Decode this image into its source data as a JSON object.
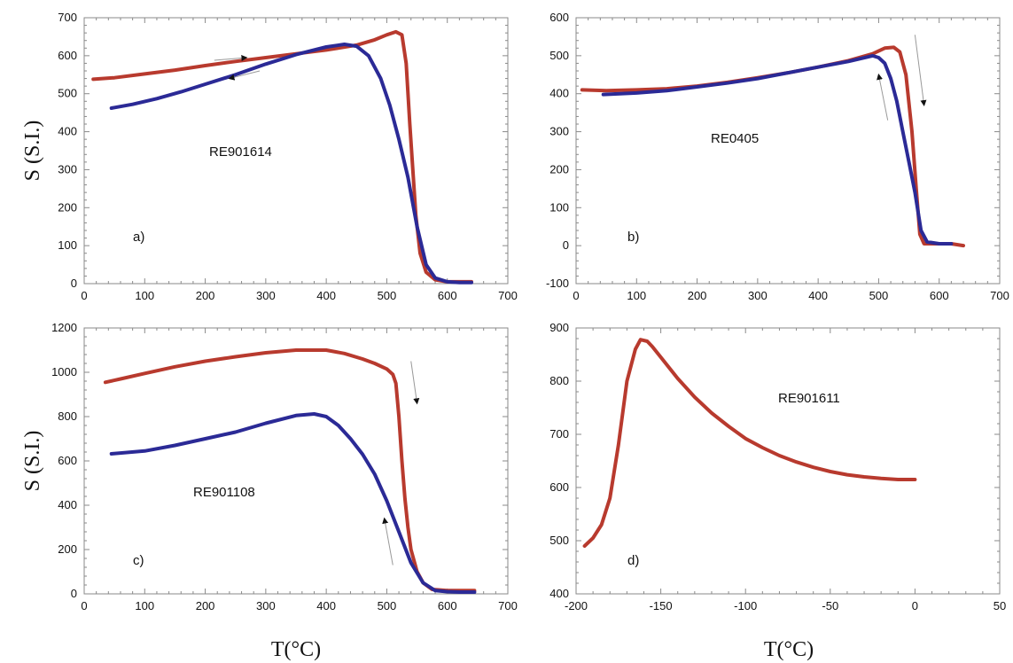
{
  "figure": {
    "ylabel_top": "S (S.I.)",
    "ylabel_bottom": "S (S.I.)",
    "xlabel_left": "T(°C)",
    "xlabel_right": "T(°C)"
  },
  "colors": {
    "heating": "#b83a2e",
    "cooling": "#2b2a96",
    "arrow": "#999999"
  },
  "chart_data": [
    {
      "type": "line",
      "panel": "a",
      "panel_label": "a)",
      "sample_label": "RE901614",
      "xlim": [
        0,
        700
      ],
      "ylim": [
        0,
        700
      ],
      "xticks": [
        0,
        100,
        200,
        300,
        400,
        500,
        600,
        700
      ],
      "yticks": [
        0,
        100,
        200,
        300,
        400,
        500,
        600,
        700
      ],
      "series": [
        {
          "role": "heating",
          "x": [
            15,
            50,
            100,
            150,
            200,
            250,
            300,
            350,
            400,
            450,
            480,
            500,
            515,
            525,
            532,
            538,
            543,
            548,
            555,
            565,
            580,
            600,
            620,
            640
          ],
          "y": [
            538,
            542,
            552,
            562,
            574,
            585,
            595,
            605,
            615,
            628,
            642,
            655,
            663,
            655,
            580,
            420,
            300,
            180,
            80,
            30,
            10,
            5,
            5,
            5
          ]
        },
        {
          "role": "cooling",
          "x": [
            45,
            80,
            120,
            160,
            200,
            250,
            300,
            350,
            400,
            430,
            450,
            470,
            490,
            505,
            520,
            535,
            550,
            565,
            580,
            600,
            620,
            640
          ],
          "y": [
            462,
            472,
            487,
            505,
            525,
            550,
            578,
            603,
            623,
            630,
            625,
            600,
            540,
            470,
            380,
            280,
            150,
            50,
            15,
            5,
            3,
            3
          ]
        }
      ],
      "arrows": [
        {
          "from": [
            215,
            588
          ],
          "to": [
            268,
            595
          ]
        },
        {
          "from": [
            290,
            560
          ],
          "to": [
            240,
            540
          ]
        }
      ]
    },
    {
      "type": "line",
      "panel": "b",
      "panel_label": "b)",
      "sample_label": "RE0405",
      "xlim": [
        0,
        700
      ],
      "ylim": [
        -100,
        600
      ],
      "xticks": [
        0,
        100,
        200,
        300,
        400,
        500,
        600,
        700
      ],
      "yticks": [
        -100,
        0,
        100,
        200,
        300,
        400,
        500,
        600
      ],
      "series": [
        {
          "role": "heating",
          "x": [
            10,
            50,
            100,
            150,
            200,
            250,
            300,
            350,
            400,
            450,
            490,
            510,
            525,
            535,
            545,
            555,
            562,
            568,
            575,
            600,
            620,
            640
          ],
          "y": [
            410,
            408,
            410,
            413,
            420,
            430,
            442,
            455,
            470,
            487,
            505,
            520,
            522,
            510,
            450,
            300,
            150,
            30,
            5,
            5,
            5,
            0
          ]
        },
        {
          "role": "cooling",
          "x": [
            45,
            100,
            150,
            200,
            250,
            300,
            350,
            400,
            450,
            490,
            500,
            510,
            520,
            530,
            540,
            550,
            560,
            570,
            580,
            600,
            620
          ],
          "y": [
            398,
            402,
            408,
            418,
            428,
            440,
            455,
            470,
            485,
            500,
            495,
            480,
            440,
            380,
            300,
            220,
            140,
            40,
            10,
            5,
            5
          ]
        }
      ],
      "arrows": [
        {
          "from": [
            560,
            555
          ],
          "to": [
            575,
            370
          ]
        },
        {
          "from": [
            515,
            330
          ],
          "to": [
            500,
            450
          ]
        }
      ]
    },
    {
      "type": "line",
      "panel": "c",
      "panel_label": "c)",
      "sample_label": "RE901108",
      "xlim": [
        0,
        700
      ],
      "ylim": [
        0,
        1200
      ],
      "xticks": [
        0,
        100,
        200,
        300,
        400,
        500,
        600,
        700
      ],
      "yticks": [
        0,
        200,
        400,
        600,
        800,
        1000,
        1200
      ],
      "series": [
        {
          "role": "heating",
          "x": [
            35,
            60,
            100,
            150,
            200,
            250,
            300,
            350,
            400,
            430,
            460,
            480,
            500,
            510,
            515,
            520,
            525,
            530,
            535,
            540,
            550,
            560,
            575,
            600,
            620,
            645
          ],
          "y": [
            955,
            970,
            995,
            1025,
            1050,
            1070,
            1088,
            1100,
            1100,
            1085,
            1060,
            1040,
            1015,
            990,
            950,
            800,
            600,
            430,
            300,
            200,
            100,
            50,
            20,
            15,
            15,
            15
          ]
        },
        {
          "role": "cooling",
          "x": [
            45,
            100,
            150,
            200,
            250,
            300,
            350,
            380,
            400,
            420,
            440,
            460,
            480,
            500,
            520,
            540,
            560,
            580,
            600,
            620,
            645
          ],
          "y": [
            632,
            645,
            670,
            700,
            730,
            770,
            805,
            812,
            800,
            760,
            700,
            630,
            540,
            420,
            280,
            140,
            50,
            15,
            10,
            8,
            8
          ]
        }
      ],
      "arrows": [
        {
          "from": [
            540,
            1050
          ],
          "to": [
            550,
            860
          ]
        },
        {
          "from": [
            510,
            130
          ],
          "to": [
            496,
            340
          ]
        }
      ]
    },
    {
      "type": "line",
      "panel": "d",
      "panel_label": "d)",
      "sample_label": "RE901611",
      "xlim": [
        -200,
        50
      ],
      "ylim": [
        400,
        900
      ],
      "xticks": [
        -200,
        -150,
        -100,
        -50,
        0,
        50
      ],
      "yticks": [
        400,
        500,
        600,
        700,
        800,
        900
      ],
      "series": [
        {
          "role": "heating",
          "x": [
            -195,
            -190,
            -185,
            -180,
            -175,
            -170,
            -165,
            -162,
            -158,
            -155,
            -150,
            -140,
            -130,
            -120,
            -110,
            -100,
            -90,
            -80,
            -70,
            -60,
            -50,
            -40,
            -30,
            -20,
            -10,
            0
          ],
          "y": [
            490,
            505,
            530,
            580,
            680,
            800,
            860,
            878,
            875,
            865,
            845,
            805,
            770,
            740,
            715,
            692,
            675,
            660,
            648,
            638,
            630,
            624,
            620,
            617,
            615,
            615
          ]
        }
      ],
      "arrows": []
    }
  ]
}
